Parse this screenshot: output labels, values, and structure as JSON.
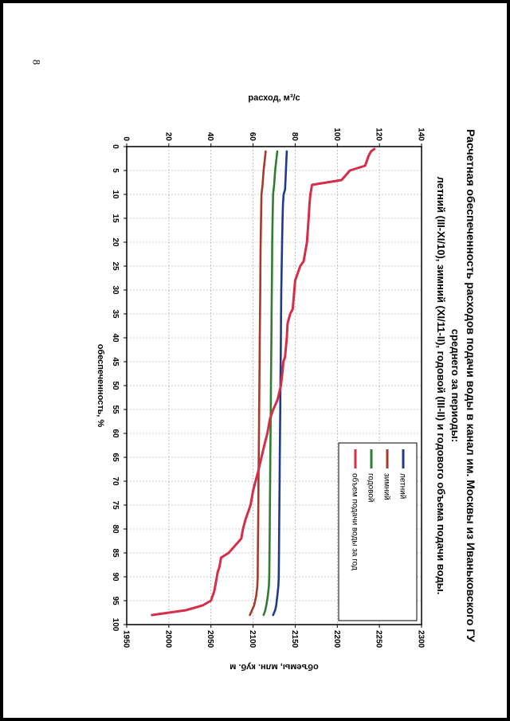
{
  "page_number": "8",
  "chart_data": {
    "type": "line",
    "title": "Расчетная обеспеченность расходов подачи воды в канал им. Москвы из Иваньковского ГУ",
    "subtitle_line1": "среднего за периоды:",
    "subtitle_line2": "летний (III-XI/10), зимний (XI/11-II), годовой (III-II) и годового объема подачи воды.",
    "xlabel": "обеспеченность, %",
    "ylabel": "расход, м³/с",
    "y2label": "объемы, млн. куб. м",
    "xlim": [
      0,
      100
    ],
    "ylim": [
      0,
      140
    ],
    "y2lim": [
      1950,
      2300
    ],
    "grid": true,
    "legend_position": "top-right",
    "x_ticks": [
      "0",
      "5",
      "10",
      "15",
      "20",
      "25",
      "30",
      "35",
      "40",
      "45",
      "50",
      "55",
      "60",
      "65",
      "70",
      "75",
      "80",
      "85",
      "90",
      "95",
      "100"
    ],
    "y_ticks": [
      "0",
      "20",
      "40",
      "60",
      "80",
      "100",
      "120",
      "140"
    ],
    "y2_ticks": [
      "1950",
      "2000",
      "2050",
      "2100",
      "2150",
      "2200",
      "2250",
      "2300"
    ],
    "series": [
      {
        "name": "летний",
        "color": "#1f3a8a",
        "axis": "left",
        "x": [
          1,
          3,
          5,
          7,
          9,
          10,
          12,
          15,
          20,
          25,
          30,
          35,
          40,
          45,
          50,
          55,
          60,
          65,
          70,
          75,
          80,
          85,
          90,
          92,
          94,
          96,
          97,
          98
        ],
        "y": [
          76,
          75.8,
          75.6,
          75.4,
          75.2,
          74.5,
          74.2,
          74,
          73.8,
          73.6,
          73.4,
          73.3,
          73.2,
          73.1,
          73,
          72.9,
          72.8,
          72.7,
          72.6,
          72.5,
          72.4,
          72.3,
          72.2,
          72,
          71.5,
          71,
          70.5,
          69.5
        ]
      },
      {
        "name": "зимний",
        "color": "#a33a2a",
        "axis": "left",
        "x": [
          1,
          3,
          5,
          8,
          10,
          15,
          20,
          25,
          30,
          35,
          40,
          45,
          50,
          55,
          60,
          65,
          70,
          75,
          80,
          85,
          90,
          92,
          94,
          96,
          97,
          98
        ],
        "y": [
          66,
          65.5,
          65,
          64.5,
          64,
          63.8,
          63.6,
          63.5,
          63.4,
          63.3,
          63.2,
          63.1,
          63,
          62.9,
          62.8,
          62.7,
          62.6,
          62.5,
          62.4,
          62.3,
          62.2,
          62,
          61.5,
          60.5,
          59.5,
          58.5
        ]
      },
      {
        "name": "годовой",
        "color": "#2e7d32",
        "axis": "left",
        "x": [
          1,
          3,
          5,
          8,
          10,
          15,
          20,
          25,
          30,
          35,
          40,
          45,
          50,
          55,
          60,
          65,
          70,
          75,
          80,
          85,
          90,
          92,
          94,
          96,
          97,
          98
        ],
        "y": [
          71.5,
          71,
          70.5,
          70,
          69.5,
          69.3,
          69.1,
          69,
          68.9,
          68.8,
          68.7,
          68.6,
          68.5,
          68.4,
          68.3,
          68.2,
          68.1,
          68,
          67.9,
          67.8,
          67.7,
          67.5,
          67,
          66.3,
          65.8,
          65
        ]
      },
      {
        "name": "объем подачи воды за год",
        "color": "#d62d48",
        "axis": "right",
        "x": [
          0.5,
          1,
          2,
          3,
          4,
          5,
          6,
          7,
          8,
          10,
          12,
          15,
          20,
          24,
          25,
          28,
          30,
          34,
          35,
          37,
          40,
          44,
          45,
          47,
          50,
          53,
          55,
          57,
          60,
          62,
          65,
          68,
          70,
          72,
          75,
          78,
          80,
          82,
          85,
          86,
          88,
          89,
          91,
          93,
          95,
          96,
          97,
          98
        ],
        "y": [
          2244,
          2240,
          2237,
          2235,
          2233,
          2215,
          2210,
          2205,
          2170,
          2168,
          2167,
          2166,
          2164,
          2160,
          2156,
          2150,
          2149,
          2147,
          2144,
          2141,
          2140,
          2138,
          2136,
          2135,
          2133,
          2129,
          2124,
          2120,
          2117,
          2114,
          2110,
          2106,
          2103,
          2100,
          2097,
          2091,
          2088,
          2086,
          2071,
          2062,
          2060,
          2058,
          2056,
          2054,
          2050,
          2040,
          2020,
          1980
        ]
      }
    ]
  }
}
